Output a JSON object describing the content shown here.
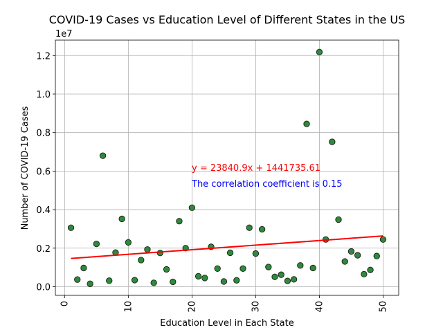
{
  "chart_data": {
    "type": "scatter",
    "title": "COVID-19 Cases vs Education Level of Different States in the US",
    "xlabel": "Education Level in Each State",
    "ylabel": "Number of COVID-19 Cases",
    "y_offset_label": "1e7",
    "xlim": [
      -1.45,
      52.45
    ],
    "ylim": [
      -0.045,
      1.28
    ],
    "y_scale_factor": 10000000,
    "xticks": [
      0,
      10,
      20,
      30,
      40,
      50
    ],
    "xtick_labels": [
      "0",
      "10",
      "20",
      "30",
      "40",
      "50"
    ],
    "yticks": [
      0.0,
      0.2,
      0.4,
      0.6,
      0.8,
      1.0,
      1.2
    ],
    "ytick_labels": [
      "0.0",
      "0.2",
      "0.4",
      "0.6",
      "0.8",
      "1.0",
      "1.2"
    ],
    "grid": true,
    "x": [
      1,
      2,
      3,
      4,
      5,
      6,
      7,
      8,
      9,
      10,
      11,
      12,
      13,
      14,
      15,
      16,
      17,
      18,
      19,
      20,
      21,
      22,
      23,
      24,
      25,
      26,
      27,
      28,
      29,
      30,
      31,
      32,
      33,
      34,
      35,
      36,
      37,
      38,
      39,
      40,
      41,
      42,
      43,
      44,
      45,
      46,
      47,
      48,
      49,
      50
    ],
    "y": [
      0.306,
      0.037,
      0.097,
      0.015,
      0.222,
      0.68,
      0.031,
      0.177,
      0.352,
      0.23,
      0.034,
      0.138,
      0.193,
      0.02,
      0.175,
      0.09,
      0.025,
      0.34,
      0.2,
      0.41,
      0.054,
      0.045,
      0.207,
      0.094,
      0.027,
      0.176,
      0.033,
      0.094,
      0.306,
      0.172,
      0.298,
      0.102,
      0.051,
      0.062,
      0.03,
      0.038,
      0.11,
      0.845,
      0.097,
      1.218,
      0.245,
      0.752,
      0.348,
      0.131,
      0.183,
      0.163,
      0.065,
      0.087,
      0.159,
      0.245
    ],
    "marker_color": "#2e8b3a",
    "marker_edge": "#1a1a1a",
    "regression": {
      "slope": 23840.9,
      "intercept": 1441735.61,
      "color": "#ff0000",
      "equation": "y = 23840.9x + 1441735.61",
      "equation_color": "#ff0000",
      "correlation_text": "The correlation coefficient is 0.15",
      "correlation_color": "#0000ff"
    }
  }
}
